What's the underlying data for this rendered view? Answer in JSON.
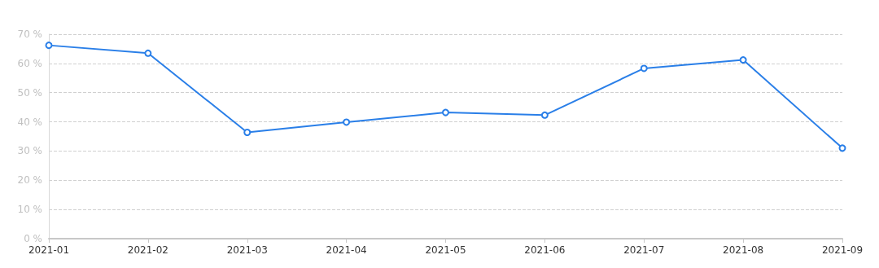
{
  "chart_data": {
    "type": "line",
    "categories": [
      "2021-01",
      "2021-02",
      "2021-03",
      "2021-04",
      "2021-05",
      "2021-06",
      "2021-07",
      "2021-08",
      "2021-09"
    ],
    "series": [
      {
        "color": "#2a7fe8",
        "values": [
          66.2,
          63.5,
          36.4,
          39.9,
          43.2,
          42.3,
          58.3,
          61.2,
          31
        ]
      }
    ],
    "ylim": [
      0,
      70
    ],
    "yticks": [
      {
        "value": 0,
        "label": "0 %"
      },
      {
        "value": 10,
        "label": "10 %"
      },
      {
        "value": 20,
        "label": "20 %"
      },
      {
        "value": 30,
        "label": "30 %"
      },
      {
        "value": 40,
        "label": "40 %"
      },
      {
        "value": 50,
        "label": "50 %"
      },
      {
        "value": 60,
        "label": "60 %"
      },
      {
        "value": 70,
        "label": "70 %"
      }
    ],
    "grid": "y",
    "marker": "circle",
    "line_style": "solid"
  }
}
